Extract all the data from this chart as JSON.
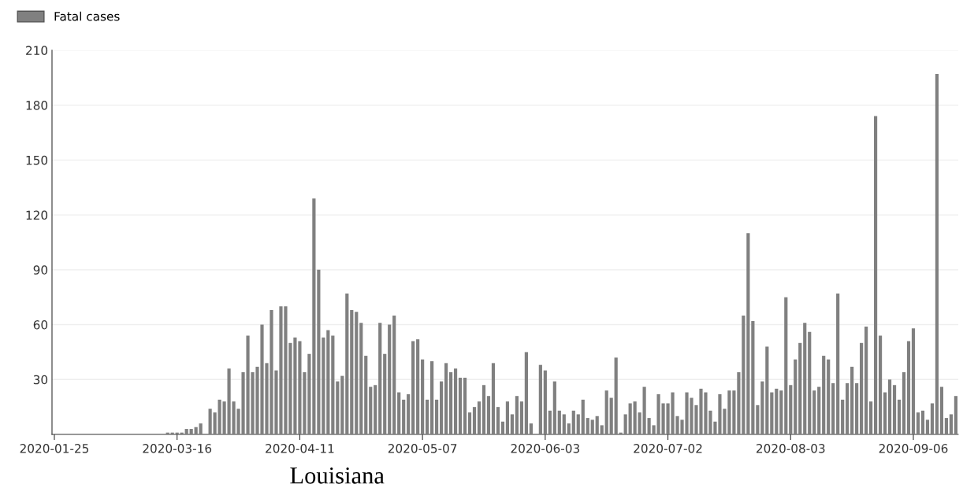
{
  "chart_data": {
    "type": "bar",
    "categories": [
      "2020-01-25",
      null,
      null,
      null,
      null,
      null,
      null,
      null,
      null,
      null,
      null,
      null,
      null,
      null,
      null,
      null,
      null,
      null,
      null,
      null,
      null,
      null,
      null,
      null,
      null,
      null,
      "2020-03-16",
      null,
      null,
      null,
      null,
      null,
      null,
      null,
      null,
      null,
      null,
      null,
      null,
      null,
      null,
      null,
      null,
      null,
      null,
      null,
      null,
      null,
      null,
      null,
      null,
      null,
      "2020-04-11",
      null,
      null,
      null,
      null,
      null,
      null,
      null,
      null,
      null,
      null,
      null,
      null,
      null,
      null,
      null,
      null,
      null,
      null,
      null,
      null,
      null,
      null,
      null,
      null,
      null,
      "2020-05-07",
      null,
      null,
      null,
      null,
      null,
      null,
      null,
      null,
      null,
      null,
      null,
      null,
      null,
      null,
      null,
      null,
      null,
      null,
      null,
      null,
      null,
      null,
      null,
      null,
      null,
      "2020-06-03",
      null,
      null,
      null,
      null,
      null,
      null,
      null,
      null,
      null,
      null,
      null,
      null,
      null,
      null,
      null,
      null,
      null,
      null,
      null,
      null,
      null,
      null,
      null,
      null,
      null,
      "2020-07-02",
      null,
      null,
      null,
      null,
      null,
      null,
      null,
      null,
      null,
      null,
      null,
      null,
      null,
      null,
      null,
      null,
      null,
      null,
      null,
      null,
      null,
      null,
      null,
      null,
      null,
      "2020-08-03",
      null,
      null,
      null,
      null,
      null,
      null,
      null,
      null,
      null,
      null,
      null,
      null,
      null,
      null,
      null,
      null,
      null,
      null,
      null,
      null,
      null,
      null,
      null,
      null,
      null,
      "2020-09-06",
      null,
      null,
      null,
      null,
      null,
      null,
      null,
      null,
      null
    ],
    "series": [
      {
        "name": "Fatal cases",
        "color": "#808080",
        "values": [
          0,
          0,
          0,
          0,
          0,
          0,
          0,
          0,
          0,
          0,
          0,
          0,
          0,
          0,
          0,
          0,
          0,
          0,
          0,
          0,
          0,
          0,
          0,
          0,
          1,
          1,
          1,
          1,
          3,
          3,
          4,
          6,
          0,
          14,
          12,
          19,
          18,
          36,
          18,
          14,
          34,
          54,
          34,
          37,
          60,
          39,
          68,
          35,
          70,
          70,
          50,
          53,
          51,
          34,
          44,
          129,
          90,
          53,
          57,
          54,
          29,
          32,
          77,
          68,
          67,
          61,
          43,
          26,
          27,
          61,
          44,
          60,
          65,
          23,
          19,
          22,
          51,
          52,
          41,
          19,
          40,
          19,
          29,
          39,
          34,
          36,
          31,
          31,
          12,
          15,
          18,
          27,
          21,
          39,
          15,
          7,
          18,
          11,
          21,
          18,
          45,
          6,
          0,
          38,
          35,
          13,
          29,
          13,
          11,
          6,
          13,
          11,
          19,
          9,
          8,
          10,
          5,
          24,
          20,
          42,
          1,
          11,
          17,
          18,
          12,
          26,
          9,
          5,
          22,
          17,
          17,
          23,
          10,
          8,
          23,
          20,
          16,
          25,
          23,
          13,
          7,
          22,
          14,
          24,
          24,
          34,
          65,
          110,
          62,
          16,
          29,
          48,
          23,
          25,
          24,
          75,
          27,
          41,
          50,
          61,
          56,
          24,
          26,
          43,
          41,
          28,
          77,
          19,
          28,
          37,
          28,
          50,
          59,
          18,
          174,
          54,
          23,
          30,
          27,
          19,
          34,
          51,
          58,
          12,
          13,
          8,
          17,
          197,
          26,
          9,
          11,
          21
        ]
      }
    ],
    "ylim": [
      0,
      210
    ],
    "yticks": [
      30,
      60,
      90,
      120,
      150,
      180,
      210
    ],
    "grid": "y",
    "legend": "top left",
    "annotations": [
      "Louisiana"
    ]
  }
}
